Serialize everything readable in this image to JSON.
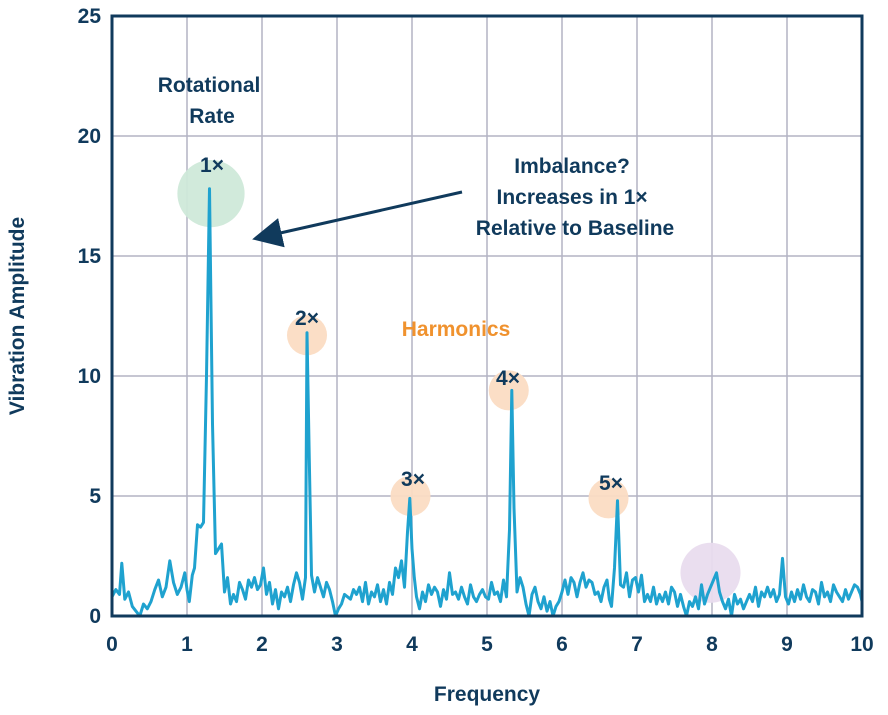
{
  "chart_data": {
    "type": "line",
    "xlabel": "Frequency",
    "ylabel": "Vibration Amplitude",
    "xlim": [
      0,
      10
    ],
    "ylim": [
      0,
      25
    ],
    "x_ticks": [
      "0",
      "1",
      "2",
      "3",
      "4",
      "5",
      "6",
      "7",
      "8",
      "9",
      "10"
    ],
    "y_ticks": [
      "0",
      "5",
      "10",
      "15",
      "20",
      "25"
    ],
    "grid": true,
    "colors": {
      "line": "#1fa2cf",
      "axis": "#103a5c",
      "grid": "#b4b4c4",
      "orange_text": "#f0922e"
    },
    "series": [
      {
        "x": [
          0.0,
          0.05,
          0.1,
          0.13,
          0.17,
          0.22,
          0.27,
          0.32,
          0.37,
          0.42,
          0.47,
          0.52,
          0.57,
          0.62,
          0.67,
          0.72,
          0.77,
          0.82,
          0.87,
          0.92,
          0.97,
          1.0,
          1.03,
          1.07,
          1.1,
          1.14,
          1.18,
          1.22,
          1.26,
          1.3,
          1.34,
          1.38,
          1.42,
          1.46,
          1.5,
          1.54,
          1.58,
          1.62,
          1.66,
          1.7,
          1.74,
          1.78,
          1.82,
          1.86,
          1.9,
          1.94,
          1.98,
          2.02,
          2.06,
          2.1,
          2.14,
          2.18,
          2.22,
          2.26,
          2.3,
          2.34,
          2.38,
          2.42,
          2.46,
          2.5,
          2.54,
          2.58,
          2.6,
          2.63,
          2.66,
          2.7,
          2.74,
          2.78,
          2.82,
          2.86,
          2.9,
          2.94,
          2.98,
          3.02,
          3.06,
          3.1,
          3.14,
          3.18,
          3.22,
          3.26,
          3.3,
          3.34,
          3.38,
          3.42,
          3.46,
          3.5,
          3.54,
          3.58,
          3.62,
          3.66,
          3.7,
          3.74,
          3.78,
          3.82,
          3.86,
          3.9,
          3.94,
          3.97,
          4.0,
          4.03,
          4.06,
          4.1,
          4.14,
          4.18,
          4.22,
          4.26,
          4.3,
          4.34,
          4.38,
          4.42,
          4.46,
          4.5,
          4.54,
          4.58,
          4.62,
          4.66,
          4.7,
          4.74,
          4.78,
          4.82,
          4.86,
          4.9,
          4.94,
          4.98,
          5.02,
          5.06,
          5.1,
          5.14,
          5.18,
          5.22,
          5.26,
          5.3,
          5.33,
          5.36,
          5.4,
          5.44,
          5.48,
          5.52,
          5.56,
          5.6,
          5.64,
          5.68,
          5.72,
          5.76,
          5.8,
          5.84,
          5.88,
          5.92,
          5.96,
          6.0,
          6.04,
          6.08,
          6.12,
          6.16,
          6.2,
          6.24,
          6.28,
          6.32,
          6.36,
          6.4,
          6.44,
          6.48,
          6.52,
          6.56,
          6.6,
          6.63,
          6.66,
          6.7,
          6.74,
          6.78,
          6.82,
          6.86,
          6.9,
          6.94,
          6.98,
          7.02,
          7.06,
          7.1,
          7.14,
          7.18,
          7.22,
          7.26,
          7.3,
          7.34,
          7.38,
          7.42,
          7.46,
          7.5,
          7.54,
          7.58,
          7.62,
          7.66,
          7.7,
          7.74,
          7.78,
          7.82,
          7.86,
          7.9,
          7.94,
          7.98,
          8.02,
          8.06,
          8.1,
          8.14,
          8.18,
          8.22,
          8.26,
          8.3,
          8.34,
          8.38,
          8.42,
          8.46,
          8.5,
          8.54,
          8.58,
          8.62,
          8.66,
          8.7,
          8.74,
          8.78,
          8.82,
          8.86,
          8.9,
          8.94,
          8.98,
          9.02,
          9.06,
          9.1,
          9.14,
          9.18,
          9.22,
          9.26,
          9.3,
          9.34,
          9.38,
          9.42,
          9.46,
          9.5,
          9.54,
          9.58,
          9.62,
          9.66,
          9.7,
          9.74,
          9.78,
          9.82,
          9.86,
          9.9,
          9.94,
          9.98,
          10.0
        ],
        "y": [
          0.8,
          1.1,
          0.9,
          2.2,
          0.7,
          1.0,
          0.4,
          0.2,
          0.0,
          0.5,
          0.3,
          0.6,
          1.1,
          1.5,
          0.8,
          1.2,
          2.3,
          1.4,
          0.9,
          1.2,
          1.8,
          1.1,
          0.6,
          1.7,
          2.0,
          3.8,
          3.7,
          3.9,
          10.0,
          17.8,
          8.0,
          2.6,
          2.8,
          3.0,
          1.0,
          1.6,
          0.5,
          0.9,
          0.6,
          1.4,
          1.1,
          0.7,
          1.5,
          1.2,
          1.6,
          1.1,
          1.3,
          2.0,
          0.9,
          1.4,
          0.5,
          1.1,
          0.3,
          1.0,
          0.8,
          1.2,
          0.6,
          1.3,
          1.8,
          1.4,
          0.7,
          1.6,
          11.8,
          6.5,
          1.7,
          1.0,
          1.6,
          1.2,
          0.8,
          1.4,
          1.1,
          0.6,
          0.0,
          0.3,
          0.5,
          0.9,
          0.8,
          0.7,
          1.1,
          0.9,
          1.2,
          0.6,
          1.4,
          0.5,
          1.0,
          0.8,
          1.3,
          0.6,
          1.1,
          0.5,
          1.4,
          0.9,
          2.0,
          1.6,
          2.3,
          1.2,
          3.5,
          4.9,
          2.8,
          1.6,
          0.8,
          0.3,
          1.0,
          0.6,
          1.3,
          0.9,
          1.2,
          1.0,
          0.4,
          1.1,
          0.7,
          1.8,
          0.9,
          1.0,
          0.7,
          1.2,
          0.8,
          0.5,
          1.3,
          0.8,
          0.6,
          0.9,
          1.1,
          0.8,
          0.7,
          1.4,
          0.9,
          1.0,
          0.6,
          1.5,
          0.8,
          3.6,
          9.4,
          4.5,
          1.0,
          1.6,
          1.2,
          0.5,
          0.0,
          0.9,
          1.2,
          0.6,
          0.3,
          0.8,
          0.2,
          0.6,
          0.0,
          0.4,
          0.6,
          1.0,
          1.5,
          0.9,
          1.6,
          1.4,
          0.8,
          1.4,
          1.8,
          1.2,
          1.5,
          1.4,
          0.9,
          1.0,
          0.6,
          1.2,
          1.5,
          0.7,
          0.4,
          2.0,
          4.8,
          1.3,
          1.2,
          1.8,
          0.8,
          1.5,
          1.6,
          1.0,
          1.7,
          0.6,
          0.9,
          0.6,
          1.2,
          0.5,
          0.9,
          0.6,
          1.0,
          0.5,
          1.2,
          1.0,
          0.4,
          0.9,
          0.4,
          0.0,
          0.6,
          0.4,
          0.8,
          0.3,
          1.3,
          0.5,
          0.9,
          1.2,
          1.5,
          1.8,
          1.0,
          0.6,
          0.3,
          0.7,
          0.0,
          0.9,
          0.5,
          0.7,
          0.3,
          0.6,
          0.9,
          0.6,
          1.2,
          0.4,
          1.0,
          0.8,
          1.2,
          0.8,
          1.1,
          0.6,
          0.9,
          2.4,
          0.8,
          0.5,
          1.0,
          0.6,
          1.1,
          0.7,
          1.3,
          0.8,
          0.6,
          1.1,
          1.0,
          0.5,
          1.4,
          0.8,
          1.0,
          0.6,
          1.3,
          1.0,
          0.8,
          0.6,
          1.1,
          0.7,
          1.0,
          1.3,
          1.2,
          0.9,
          0.6
        ]
      }
    ],
    "annotations": {
      "rotational_rate": [
        "Rotational",
        "Rate"
      ],
      "imbalance": [
        "Imbalance?",
        "Increases in 1×",
        "Relative to Baseline"
      ],
      "harmonics": "Harmonics",
      "markers": [
        {
          "label": "1×",
          "x": 1.32,
          "y": 17.6,
          "r": 2.35,
          "color": "#cfe9d9"
        },
        {
          "label": "2×",
          "x": 2.6,
          "y": 11.7,
          "r": 1.4,
          "color": "#fbdcc3"
        },
        {
          "label": "3×",
          "x": 3.98,
          "y": 5.0,
          "r": 1.4,
          "color": "#fbdcc3"
        },
        {
          "label": "4×",
          "x": 5.29,
          "y": 9.4,
          "r": 1.4,
          "color": "#fbdcc3"
        },
        {
          "label": "5×",
          "x": 6.62,
          "y": 4.9,
          "r": 1.4,
          "color": "#fbdcc3"
        },
        {
          "label": "",
          "x": 7.98,
          "y": 1.8,
          "r": 2.1,
          "color": "#e9dcee"
        }
      ]
    }
  }
}
